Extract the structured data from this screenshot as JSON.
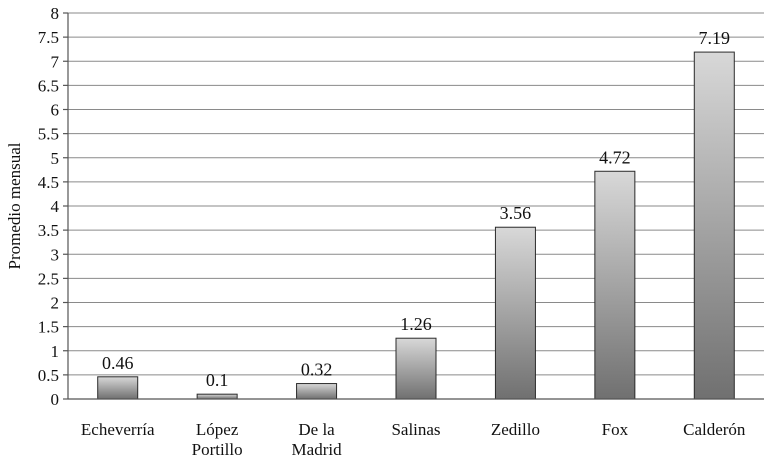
{
  "chart_data": {
    "type": "bar",
    "categories": [
      "Echeverría",
      "López Portillo",
      "De la Madrid",
      "Salinas",
      "Zedillo",
      "Fox",
      "Calderón"
    ],
    "category_lines": [
      [
        "Echeverría"
      ],
      [
        "López",
        "Portillo"
      ],
      [
        "De la",
        "Madrid"
      ],
      [
        "Salinas"
      ],
      [
        "Zedillo"
      ],
      [
        "Fox"
      ],
      [
        "Calderón"
      ]
    ],
    "values": [
      0.46,
      0.1,
      0.32,
      1.26,
      3.56,
      4.72,
      7.19
    ],
    "data_labels": [
      "0.46",
      "0.1",
      "0.32",
      "1.26",
      "3.56",
      "4.72",
      "7.19"
    ],
    "title": "",
    "xlabel": "",
    "ylabel": "Promedio mensual",
    "ylim": [
      0,
      8
    ],
    "yticks": [
      "0",
      "0.5",
      "1",
      "1.5",
      "2",
      "2.5",
      "3",
      "3.5",
      "4",
      "4.5",
      "5",
      "5.5",
      "6",
      "6.5",
      "7",
      "7.5",
      "8"
    ],
    "grid": true,
    "legend": "none",
    "bar_color_light": "#d8d8d8",
    "bar_color_dark": "#707070"
  }
}
